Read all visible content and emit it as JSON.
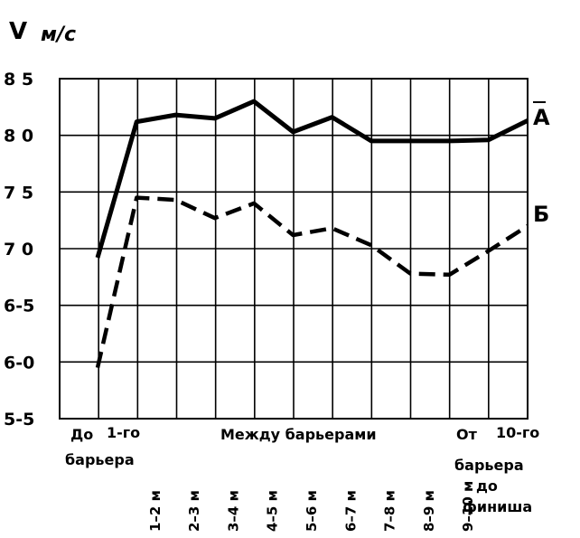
{
  "chart_data": {
    "type": "line",
    "ylabel": "V",
    "yunit": "м/с",
    "ylim": [
      5.5,
      8.5
    ],
    "yticks": [
      "5-5",
      "6-0",
      "6-5",
      "7 0",
      "7 5",
      "8 0",
      "8 5"
    ],
    "grid": true,
    "x": [
      "До барьера",
      "1-го",
      "1–2 м",
      "2–3 м",
      "3–4 м",
      "4–5 м",
      "5–6 м",
      "6–7 м",
      "7–8 м",
      "8–9 м",
      "9–10 м",
      "От 10-го барьера до финиша"
    ],
    "series": [
      {
        "name": "A",
        "style": "solid",
        "values": [
          6.92,
          8.12,
          8.18,
          8.15,
          8.3,
          8.03,
          8.16,
          7.95,
          7.95,
          7.95,
          7.96,
          8.13
        ]
      },
      {
        "name": "Б",
        "style": "dashed",
        "values": [
          5.95,
          7.45,
          7.43,
          7.27,
          7.4,
          7.12,
          7.18,
          7.03,
          6.78,
          6.77,
          6.98,
          7.2
        ]
      }
    ],
    "xlabels": {
      "start_line1": "До",
      "start_line2": "барьера",
      "first": "1-го",
      "middle": "Между барьерами",
      "end_ot": "От",
      "end_tenth": "10-го",
      "end_line2": "барьера",
      "end_line3": "до",
      "end_line4": "финиша",
      "intervals": [
        "1–2 м",
        "2–3 м",
        "3–4 м",
        "4–5 м",
        "5–6 м",
        "6–7 м",
        "7–8 м",
        "8–9 м",
        "9–10 м"
      ]
    }
  },
  "colors": {
    "ink": "#000000",
    "background": "#ffffff"
  }
}
